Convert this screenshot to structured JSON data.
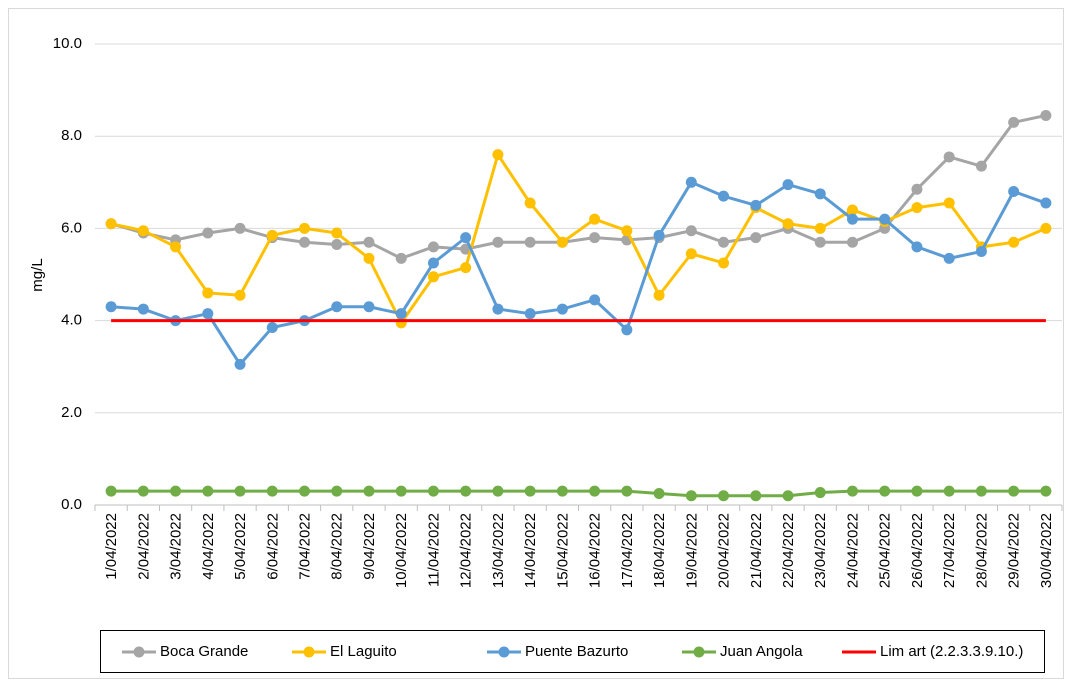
{
  "chart_data": {
    "type": "line",
    "y_label": "mg/L",
    "categories": [
      "1/04/2022",
      "2/04/2022",
      "3/04/2022",
      "4/04/2022",
      "5/04/2022",
      "6/04/2022",
      "7/04/2022",
      "8/04/2022",
      "9/04/2022",
      "10/04/2022",
      "11/04/2022",
      "12/04/2022",
      "13/04/2022",
      "14/04/2022",
      "15/04/2022",
      "16/04/2022",
      "17/04/2022",
      "18/04/2022",
      "19/04/2022",
      "20/04/2022",
      "21/04/2022",
      "22/04/2022",
      "23/04/2022",
      "24/04/2022",
      "25/04/2022",
      "26/04/2022",
      "27/04/2022",
      "28/04/2022",
      "29/04/2022",
      "30/04/2022"
    ],
    "series": [
      {
        "name": "Boca Grande",
        "color": "#a5a5a5",
        "marker": true,
        "values": [
          6.1,
          5.9,
          5.75,
          5.9,
          6.0,
          5.8,
          5.7,
          5.65,
          5.7,
          5.35,
          5.6,
          5.55,
          5.7,
          5.7,
          5.7,
          5.8,
          5.75,
          5.8,
          5.95,
          5.7,
          5.8,
          6.0,
          5.7,
          5.7,
          6.0,
          6.85,
          7.55,
          7.35,
          8.3,
          8.45
        ]
      },
      {
        "name": "El Laguito",
        "color": "#ffc000",
        "marker": true,
        "values": [
          6.1,
          5.95,
          5.6,
          4.6,
          4.55,
          5.85,
          6.0,
          5.9,
          5.35,
          3.95,
          4.95,
          5.15,
          7.6,
          6.55,
          5.7,
          6.2,
          5.95,
          4.55,
          5.45,
          5.25,
          6.45,
          6.1,
          6.0,
          6.4,
          6.15,
          6.45,
          6.55,
          5.6,
          5.7,
          6.0
        ]
      },
      {
        "name": "Puente Bazurto",
        "color": "#5b9bd5",
        "marker": true,
        "values": [
          4.3,
          4.25,
          4.0,
          4.15,
          3.05,
          3.85,
          4.0,
          4.3,
          4.3,
          4.15,
          5.25,
          5.8,
          4.25,
          4.15,
          4.25,
          4.45,
          3.8,
          5.85,
          7.0,
          6.7,
          6.5,
          6.95,
          6.75,
          6.2,
          6.2,
          5.6,
          5.35,
          5.5,
          6.8,
          6.55
        ]
      },
      {
        "name": "Juan Angola",
        "color": "#70ad47",
        "marker": true,
        "values": [
          0.3,
          0.3,
          0.3,
          0.3,
          0.3,
          0.3,
          0.3,
          0.3,
          0.3,
          0.3,
          0.3,
          0.3,
          0.3,
          0.3,
          0.3,
          0.3,
          0.3,
          0.25,
          0.2,
          0.2,
          0.2,
          0.2,
          0.27,
          0.3,
          0.3,
          0.3,
          0.3,
          0.3,
          0.3,
          0.3
        ]
      },
      {
        "name": "Lim art (2.2.3.3.9.10.)",
        "color": "#ff0000",
        "marker": false,
        "values": [
          4,
          4,
          4,
          4,
          4,
          4,
          4,
          4,
          4,
          4,
          4,
          4,
          4,
          4,
          4,
          4,
          4,
          4,
          4,
          4,
          4,
          4,
          4,
          4,
          4,
          4,
          4,
          4,
          4,
          4
        ]
      }
    ],
    "ylim": [
      0,
      10
    ],
    "yticks": [
      {
        "value": 0,
        "label": "0.0"
      },
      {
        "value": 2,
        "label": "2.0"
      },
      {
        "value": 4,
        "label": "4.0"
      },
      {
        "value": 6,
        "label": "6.0"
      },
      {
        "value": 8,
        "label": "8.0"
      },
      {
        "value": 10,
        "label": "10.0"
      }
    ],
    "grid": true,
    "legend": "bottom"
  }
}
